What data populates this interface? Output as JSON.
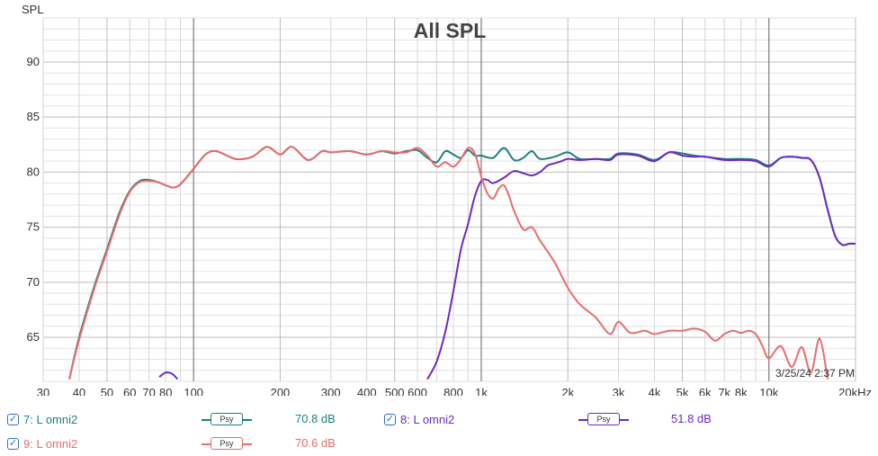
{
  "chart_data": {
    "type": "line",
    "title": "All SPL",
    "ylabel": "SPL",
    "xlabel": "",
    "x_scale": "log",
    "xlim": [
      30,
      20000
    ],
    "ylim": [
      61,
      94
    ],
    "x_ticks": [
      30,
      40,
      50,
      60,
      70,
      80,
      100,
      200,
      300,
      400,
      500,
      600,
      800,
      1000,
      2000,
      3000,
      4000,
      5000,
      6000,
      7000,
      8000,
      10000,
      20000
    ],
    "x_tick_labels": [
      "30",
      "40",
      "50",
      "60",
      "70",
      "80",
      "100",
      "200",
      "300",
      "400",
      "500",
      "600",
      "800",
      "1k",
      "2k",
      "3k",
      "4k",
      "5k",
      "6k",
      "7k",
      "8k",
      "10k",
      "20kHz"
    ],
    "y_ticks": [
      65,
      70,
      75,
      80,
      85,
      90
    ],
    "grid": true,
    "timestamp": "3/25/24 2:37 PM",
    "series": [
      {
        "name": "7: L omni2",
        "color": "#1f7f7f",
        "x": [
          37,
          40,
          45,
          50,
          55,
          60,
          65,
          70,
          75,
          80,
          85,
          90,
          100,
          110,
          120,
          140,
          160,
          180,
          200,
          220,
          250,
          280,
          300,
          350,
          400,
          450,
          500,
          550,
          600,
          650,
          700,
          750,
          800,
          850,
          900,
          950,
          1000,
          1100,
          1200,
          1300,
          1400,
          1500,
          1600,
          1800,
          2000,
          2200,
          2500,
          2800,
          3000,
          3500,
          4000,
          4500,
          5000,
          5500,
          6000,
          7000,
          8000,
          9000,
          10000,
          11000,
          12000,
          13000,
          14000,
          15000,
          16000,
          17000,
          18000,
          19000,
          20000
        ],
        "values": [
          61.2,
          65,
          69.5,
          73,
          76.2,
          78.3,
          79.2,
          79.3,
          79.1,
          78.8,
          78.6,
          78.9,
          80.3,
          81.6,
          81.9,
          81.2,
          81.4,
          82.3,
          81.6,
          82.3,
          81.1,
          81.9,
          81.8,
          81.9,
          81.6,
          81.9,
          81.7,
          81.9,
          82,
          81.3,
          80.9,
          81.9,
          81.6,
          81.3,
          82,
          81.5,
          81.5,
          81.3,
          82.2,
          81.1,
          81.3,
          81.9,
          81.2,
          81.4,
          81.8,
          81.2,
          81.2,
          81.2,
          81.7,
          81.6,
          81.1,
          81.8,
          81.7,
          81.5,
          81.4,
          81.2,
          81.2,
          81.1,
          80.6,
          81.3,
          81.4,
          81.3,
          81.1,
          79.5,
          76.6,
          74.2,
          73.4,
          73.5,
          73.5
        ]
      },
      {
        "name": "9: L omni2",
        "color": "#e86d6d",
        "x": [
          37,
          40,
          45,
          50,
          55,
          60,
          65,
          70,
          75,
          80,
          85,
          90,
          100,
          110,
          120,
          140,
          160,
          180,
          200,
          220,
          250,
          280,
          300,
          350,
          400,
          450,
          500,
          550,
          600,
          650,
          700,
          750,
          800,
          850,
          900,
          950,
          1000,
          1050,
          1100,
          1150,
          1200,
          1250,
          1300,
          1400,
          1500,
          1600,
          1800,
          2000,
          2200,
          2500,
          2800,
          3000,
          3300,
          3700,
          4000,
          4500,
          5000,
          5500,
          6000,
          6500,
          7000,
          7500,
          8000,
          8500,
          9000,
          9500,
          10000,
          11000,
          12000,
          13000,
          14000,
          15000,
          16000
        ],
        "values": [
          61.2,
          64.8,
          69.3,
          72.8,
          76,
          78.2,
          79.1,
          79.2,
          79.1,
          78.8,
          78.6,
          78.9,
          80.3,
          81.6,
          81.9,
          81.2,
          81.4,
          82.3,
          81.6,
          82.3,
          81.1,
          81.9,
          81.8,
          81.9,
          81.6,
          81.9,
          81.8,
          81.8,
          82.2,
          81.5,
          80.5,
          80.9,
          80.5,
          81.2,
          82.2,
          81.7,
          79.6,
          78.1,
          77.6,
          78.5,
          78.8,
          77.8,
          76.5,
          74.8,
          75,
          73.8,
          71.8,
          69.5,
          68,
          66.8,
          65.3,
          66.4,
          65.4,
          65.6,
          65.3,
          65.6,
          65.6,
          65.8,
          65.5,
          64.7,
          65.3,
          65.6,
          65.4,
          65.6,
          65.3,
          64.2,
          63.1,
          64.2,
          62.3,
          64.1,
          61.8,
          64.9,
          61.2
        ]
      },
      {
        "name": "8: L omni2",
        "color": "#6a2cc4",
        "x": [
          650,
          700,
          750,
          800,
          850,
          900,
          950,
          1000,
          1050,
          1100,
          1200,
          1300,
          1400,
          1500,
          1600,
          1700,
          1800,
          1900,
          2000,
          2200,
          2500,
          2800,
          3000,
          3500,
          4000,
          4500,
          5000,
          5500,
          6000,
          7000,
          8000,
          9000,
          10000,
          11000,
          12000,
          13000,
          14000,
          15000,
          16000,
          17000,
          18000,
          19000,
          20000
        ],
        "values": [
          61.2,
          62.8,
          65.5,
          69.2,
          73,
          75.3,
          77.8,
          79.2,
          79.3,
          79,
          79.5,
          80.1,
          79.9,
          79.7,
          80,
          80.6,
          80.8,
          81,
          81.2,
          81.1,
          81.2,
          81.1,
          81.6,
          81.5,
          81,
          81.8,
          81.5,
          81.4,
          81.4,
          81.1,
          81.1,
          81,
          80.5,
          81.3,
          81.4,
          81.3,
          81.1,
          79.5,
          76.6,
          74.2,
          73.4,
          73.5,
          73.5
        ]
      },
      {
        "name": "8: L omni2 (low)",
        "color": "#6a2cc4",
        "x": [
          76,
          80,
          84,
          88
        ],
        "values": [
          61.4,
          61.8,
          61.7,
          61.2
        ]
      }
    ],
    "legend": [
      {
        "label": "7: L omni2",
        "checked": true,
        "color": "#1f7f7f",
        "psy": "Psy",
        "level": "70.8 dB"
      },
      {
        "label": "8: L omni2",
        "checked": true,
        "color": "#6a2cc4",
        "psy": "Psy",
        "level": "51.8 dB"
      },
      {
        "label": "9: L omni2",
        "checked": true,
        "color": "#e86d6d",
        "psy": "Psy",
        "level": "70.6 dB"
      }
    ]
  }
}
